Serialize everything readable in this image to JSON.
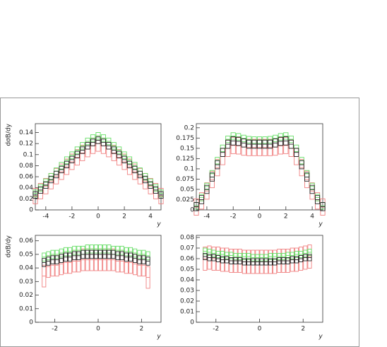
{
  "chart_data": [
    {
      "type": "errorbox",
      "ylabel": "dσB/dy",
      "xlabel": "y",
      "x": [
        -4.8,
        -4.4,
        -4,
        -3.6,
        -3.2,
        -2.8,
        -2.4,
        -2,
        -1.6,
        -1.2,
        -0.8,
        -0.4,
        0,
        0.4,
        0.8,
        1.2,
        1.6,
        2,
        2.4,
        2.8,
        3.2,
        3.6,
        4,
        4.4,
        4.8
      ],
      "xlim": [
        -4.8,
        4.8
      ],
      "xticks": [
        -4,
        -2,
        0,
        2,
        4
      ],
      "ylim": [
        0,
        0.156
      ],
      "yticks": [
        0,
        0.02,
        0.04,
        0.06,
        0.08,
        0.1,
        0.12,
        0.14
      ],
      "series": [
        {
          "color": "#f08080",
          "error": 0.014,
          "values": [
            0.025,
            0.034,
            0.043,
            0.052,
            0.061,
            0.069,
            0.078,
            0.087,
            0.095,
            0.103,
            0.11,
            0.116,
            0.12,
            0.116,
            0.11,
            0.103,
            0.095,
            0.087,
            0.078,
            0.069,
            0.061,
            0.052,
            0.043,
            0.034,
            0.025
          ]
        },
        {
          "color": "#66dd66",
          "error": 0.006,
          "values": [
            0.03,
            0.04,
            0.05,
            0.06,
            0.07,
            0.08,
            0.09,
            0.099,
            0.108,
            0.116,
            0.124,
            0.13,
            0.134,
            0.13,
            0.124,
            0.116,
            0.108,
            0.099,
            0.09,
            0.08,
            0.07,
            0.06,
            0.05,
            0.04,
            0.03
          ]
        },
        {
          "color": "#222222",
          "error": 0.006,
          "values": [
            0.027,
            0.036,
            0.045,
            0.055,
            0.064,
            0.073,
            0.082,
            0.091,
            0.1,
            0.108,
            0.116,
            0.122,
            0.126,
            0.122,
            0.116,
            0.108,
            0.1,
            0.091,
            0.082,
            0.073,
            0.064,
            0.055,
            0.045,
            0.036,
            0.027
          ]
        }
      ]
    },
    {
      "type": "errorbox",
      "xlabel": "y",
      "x": [
        -4.8,
        -4.4,
        -4,
        -3.6,
        -3.2,
        -2.8,
        -2.4,
        -2,
        -1.6,
        -1.2,
        -0.8,
        -0.4,
        0,
        0.4,
        0.8,
        1.2,
        1.6,
        2,
        2.4,
        2.8,
        3.2,
        3.6,
        4,
        4.4,
        4.8
      ],
      "xlim": [
        -4.8,
        4.8
      ],
      "xticks": [
        -4,
        -2,
        0,
        2,
        4
      ],
      "ylim": [
        0,
        0.21
      ],
      "yticks": [
        0,
        0.025,
        0.05,
        0.075,
        0.1,
        0.125,
        0.15,
        0.175,
        0.2
      ],
      "series": [
        {
          "color": "#f08080",
          "error": 0.02,
          "values": [
            0.007,
            0.022,
            0.046,
            0.074,
            0.103,
            0.13,
            0.15,
            0.157,
            0.156,
            0.153,
            0.152,
            0.152,
            0.152,
            0.152,
            0.152,
            0.153,
            0.156,
            0.157,
            0.15,
            0.13,
            0.103,
            0.074,
            0.046,
            0.022,
            0.007
          ]
        },
        {
          "color": "#66dd66",
          "error": 0.008,
          "values": [
            0.01,
            0.03,
            0.057,
            0.088,
            0.12,
            0.15,
            0.172,
            0.18,
            0.178,
            0.174,
            0.171,
            0.17,
            0.17,
            0.17,
            0.171,
            0.174,
            0.178,
            0.18,
            0.172,
            0.15,
            0.12,
            0.088,
            0.057,
            0.03,
            0.01
          ]
        },
        {
          "color": "#222222",
          "error": 0.01,
          "values": [
            0.008,
            0.025,
            0.05,
            0.08,
            0.11,
            0.14,
            0.16,
            0.168,
            0.167,
            0.163,
            0.16,
            0.16,
            0.16,
            0.16,
            0.16,
            0.163,
            0.167,
            0.168,
            0.16,
            0.14,
            0.11,
            0.08,
            0.05,
            0.025,
            0.008
          ]
        }
      ]
    },
    {
      "type": "errorbox",
      "ylabel": "dσB/dy",
      "xlabel": "y",
      "x": [
        -2.5,
        -2.3,
        -2.1,
        -1.9,
        -1.7,
        -1.5,
        -1.3,
        -1.1,
        -0.9,
        -0.7,
        -0.5,
        -0.3,
        -0.1,
        0.1,
        0.3,
        0.5,
        0.7,
        0.9,
        1.1,
        1.3,
        1.5,
        1.7,
        1.9,
        2.1,
        2.3
      ],
      "xlim": [
        -2.9,
        2.9
      ],
      "xticks": [
        -2,
        0,
        2
      ],
      "ylim": [
        0,
        0.064
      ],
      "yticks": [
        0,
        0.01,
        0.02,
        0.03,
        0.04,
        0.05,
        0.06
      ],
      "series": [
        {
          "color": "#f08080",
          "error": 0.008,
          "values": [
            0.034,
            0.041,
            0.042,
            0.042,
            0.043,
            0.044,
            0.044,
            0.045,
            0.045,
            0.046,
            0.046,
            0.046,
            0.046,
            0.046,
            0.046,
            0.046,
            0.046,
            0.045,
            0.045,
            0.044,
            0.044,
            0.043,
            0.042,
            0.042,
            0.033
          ]
        },
        {
          "color": "#66dd66",
          "error": 0.003,
          "values": [
            0.048,
            0.049,
            0.05,
            0.05,
            0.051,
            0.052,
            0.052,
            0.053,
            0.053,
            0.053,
            0.054,
            0.054,
            0.054,
            0.054,
            0.054,
            0.054,
            0.053,
            0.053,
            0.053,
            0.052,
            0.052,
            0.051,
            0.05,
            0.05,
            0.049
          ]
        },
        {
          "color": "#222222",
          "error": 0.003,
          "values": [
            0.044,
            0.045,
            0.046,
            0.046,
            0.047,
            0.048,
            0.048,
            0.049,
            0.049,
            0.05,
            0.05,
            0.05,
            0.05,
            0.05,
            0.05,
            0.05,
            0.05,
            0.049,
            0.049,
            0.048,
            0.048,
            0.047,
            0.046,
            0.046,
            0.045
          ]
        }
      ]
    },
    {
      "type": "errorbox",
      "xlabel": "y",
      "x": [
        -2.5,
        -2.3,
        -2.1,
        -1.9,
        -1.7,
        -1.5,
        -1.3,
        -1.1,
        -0.9,
        -0.7,
        -0.5,
        -0.3,
        -0.1,
        0.1,
        0.3,
        0.5,
        0.7,
        0.9,
        1.1,
        1.3,
        1.5,
        1.7,
        1.9,
        2.1,
        2.3
      ],
      "xlim": [
        -2.9,
        2.9
      ],
      "xticks": [
        -2,
        0,
        2
      ],
      "ylim": [
        0,
        0.082
      ],
      "yticks": [
        0,
        0.01,
        0.02,
        0.03,
        0.04,
        0.05,
        0.06,
        0.07,
        0.08
      ],
      "series": [
        {
          "color": "#f08080",
          "error": 0.011,
          "values": [
            0.06,
            0.061,
            0.06,
            0.06,
            0.059,
            0.059,
            0.058,
            0.058,
            0.058,
            0.057,
            0.057,
            0.057,
            0.057,
            0.057,
            0.057,
            0.057,
            0.057,
            0.058,
            0.058,
            0.058,
            0.059,
            0.059,
            0.06,
            0.061,
            0.062
          ]
        },
        {
          "color": "#66dd66",
          "error": 0.003,
          "values": [
            0.067,
            0.066,
            0.065,
            0.064,
            0.064,
            0.063,
            0.063,
            0.062,
            0.062,
            0.062,
            0.062,
            0.061,
            0.061,
            0.061,
            0.061,
            0.062,
            0.062,
            0.062,
            0.062,
            0.063,
            0.063,
            0.064,
            0.064,
            0.065,
            0.066
          ]
        },
        {
          "color": "#222222",
          "error": 0.003,
          "values": [
            0.062,
            0.061,
            0.061,
            0.06,
            0.059,
            0.059,
            0.058,
            0.058,
            0.058,
            0.057,
            0.057,
            0.057,
            0.057,
            0.057,
            0.057,
            0.057,
            0.057,
            0.058,
            0.058,
            0.058,
            0.059,
            0.059,
            0.06,
            0.061,
            0.061
          ]
        }
      ]
    }
  ]
}
